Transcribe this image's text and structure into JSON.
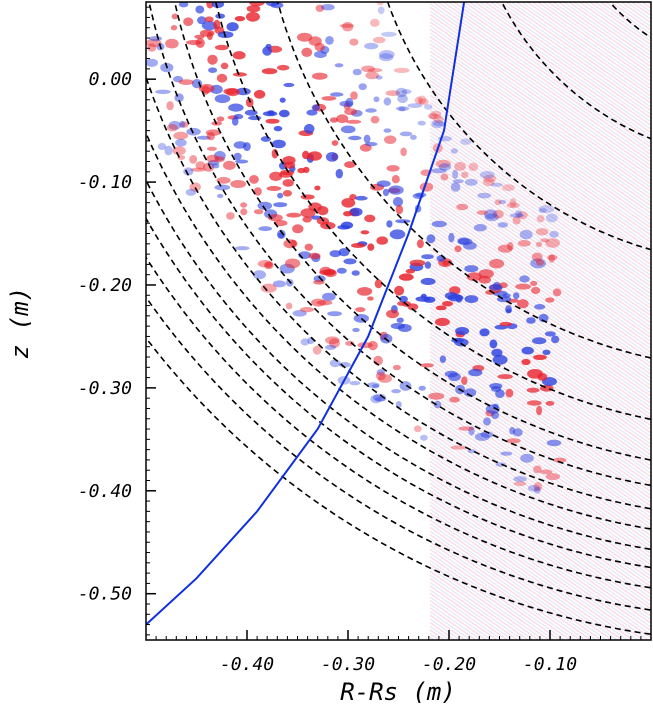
{
  "chart_data": {
    "type": "heatmap",
    "title": "",
    "xlabel": "R-Rs (m)",
    "ylabel": "z (m)",
    "xlim": [
      -0.5,
      0.0
    ],
    "ylim": [
      -0.545,
      0.075
    ],
    "x_ticks": [
      -0.4,
      -0.3,
      -0.2,
      -0.1
    ],
    "x_tick_labels": [
      "-0.40",
      "-0.30",
      "-0.20",
      "-0.10"
    ],
    "y_ticks": [
      0.0,
      -0.1,
      -0.2,
      -0.3,
      -0.4,
      -0.5
    ],
    "y_tick_labels": [
      "0.00",
      "-0.10",
      "-0.20",
      "-0.30",
      "-0.40",
      "-0.50"
    ],
    "grid": false,
    "colormap": {
      "positive": "#e8202a",
      "negative": "#2a3fe0",
      "zero": "#ffffff"
    },
    "resonance_curve": {
      "color": "#1030e0",
      "points": [
        [
          -0.185,
          0.075
        ],
        [
          -0.205,
          -0.05
        ],
        [
          -0.24,
          -0.15
        ],
        [
          -0.28,
          -0.25
        ],
        [
          -0.33,
          -0.34
        ],
        [
          -0.39,
          -0.42
        ],
        [
          -0.45,
          -0.485
        ],
        [
          -0.5,
          -0.53
        ]
      ]
    },
    "flux_surfaces": {
      "style": "dashed",
      "color": "#000000"
    }
  }
}
